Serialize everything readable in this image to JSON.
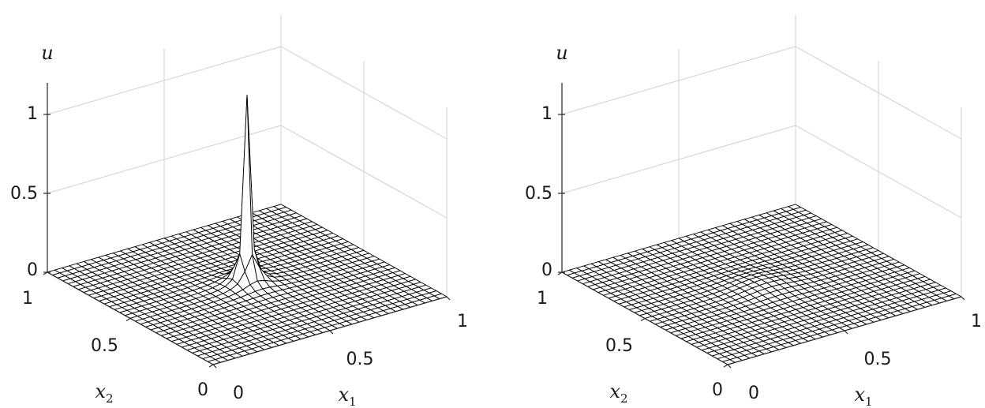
{
  "chart_data": [
    {
      "type": "surface",
      "title": "",
      "xlabel": "x_1",
      "ylabel": "x_2",
      "zlabel": "u",
      "xlim": [
        0,
        1
      ],
      "ylim": [
        0,
        1
      ],
      "zlim": [
        0,
        1.2
      ],
      "xticks": [
        "0",
        "0.5",
        "1"
      ],
      "yticks": [
        "0",
        "0.5",
        "1"
      ],
      "zticks": [
        "0",
        "0.5",
        "1"
      ],
      "grid": true,
      "mesh": {
        "n": 32,
        "color": "#000000",
        "face": "#ffffff"
      },
      "surface": {
        "kind": "spike",
        "center": [
          0.5,
          0.5
        ],
        "peak": 1.2,
        "width": 0.035
      }
    },
    {
      "type": "surface",
      "title": "",
      "xlabel": "x_1",
      "ylabel": "x_2",
      "zlabel": "u",
      "xlim": [
        0,
        1
      ],
      "ylim": [
        0,
        1
      ],
      "zlim": [
        0,
        1.2
      ],
      "xticks": [
        "0",
        "0.5",
        "1"
      ],
      "yticks": [
        "0",
        "0.5",
        "1"
      ],
      "zticks": [
        "0",
        "0.5",
        "1"
      ],
      "grid": true,
      "mesh": {
        "n": 32,
        "color": "#000000",
        "face": "#ffffff"
      },
      "surface": {
        "kind": "bump",
        "center": [
          0.5,
          0.5
        ],
        "peak": 0.03,
        "width": 0.09
      }
    }
  ]
}
